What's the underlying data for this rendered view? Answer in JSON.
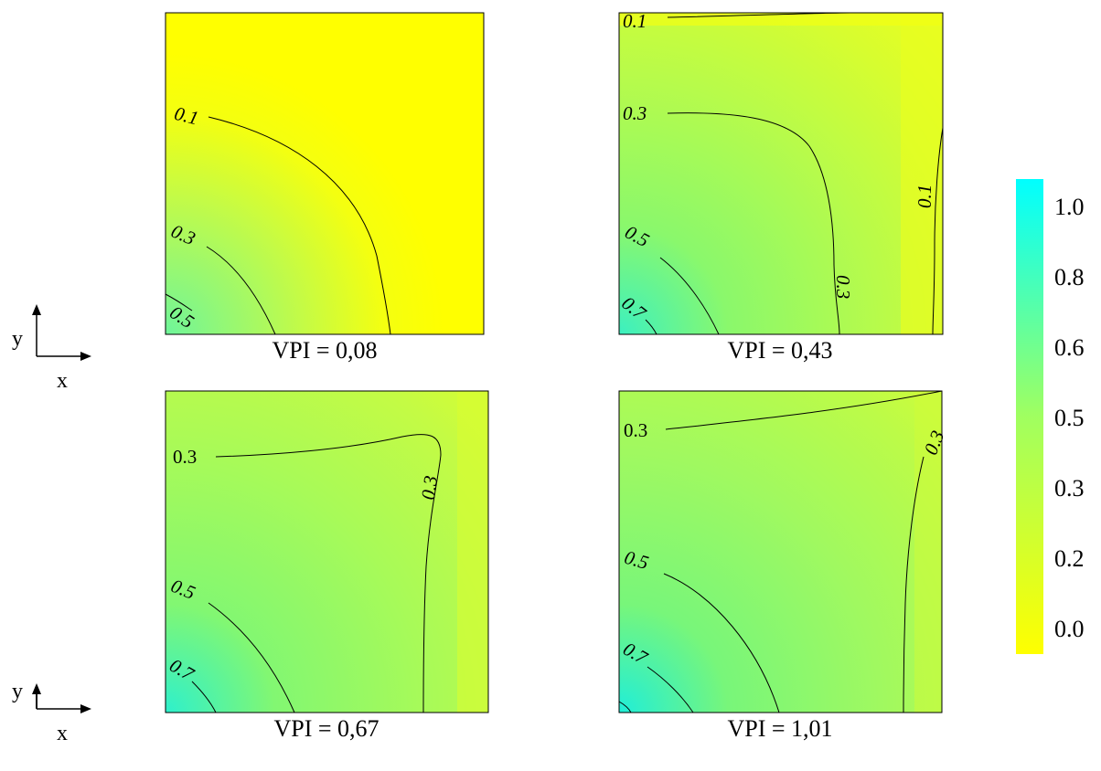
{
  "chart_data": [
    {
      "type": "heatmap",
      "title": "VPI = 0,08",
      "contour_levels": [
        0.1,
        0.3,
        0.5
      ],
      "contour_labels": [
        "0.1",
        "0.3",
        "0.5"
      ]
    },
    {
      "type": "heatmap",
      "title": "VPI = 0,43",
      "contour_levels": [
        0.1,
        0.3,
        0.5,
        0.7
      ],
      "contour_labels": [
        "0.1",
        "0.3",
        "0.5",
        "0.7",
        "0.3",
        "0.1"
      ]
    },
    {
      "type": "heatmap",
      "title": "VPI = 0,67",
      "contour_levels": [
        0.3,
        0.5,
        0.7
      ],
      "contour_labels": [
        "0.3",
        "0.5",
        "0.7",
        "0.3"
      ]
    },
    {
      "type": "heatmap",
      "title": "VPI = 1,01",
      "contour_levels": [
        0.3,
        0.5,
        0.7
      ],
      "contour_labels": [
        "0.3",
        "0.5",
        "0.7",
        "0.3"
      ]
    }
  ],
  "colorbar": {
    "tick_labels": [
      "1.0",
      "0.8",
      "0.6",
      "0.5",
      "0.3",
      "0.2",
      "0.0"
    ],
    "range": [
      0.0,
      1.0
    ],
    "color_low": "#ffff00",
    "color_mid": "#a0ff60",
    "color_high": "#00ffff"
  },
  "axis_indicator": {
    "x_label": "x",
    "y_label": "y"
  }
}
